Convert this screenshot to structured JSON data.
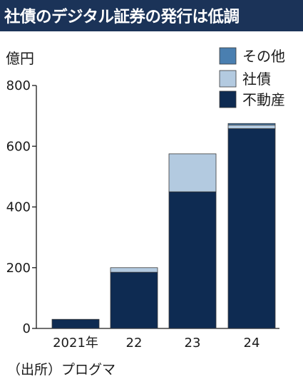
{
  "header": {
    "title": "社債のデジタル証券の発行は低調"
  },
  "unit": "億円",
  "source": "（出所）プログマ",
  "chart_data": {
    "type": "bar",
    "stacked": true,
    "categories": [
      "2021年",
      "22",
      "23",
      "24"
    ],
    "series": [
      {
        "name": "不動産",
        "color": "#0e2b52",
        "values": [
          30,
          185,
          450,
          658
        ]
      },
      {
        "name": "社債",
        "color": "#b3cae0",
        "values": [
          0,
          15,
          125,
          12
        ]
      },
      {
        "name": "その他",
        "color": "#4a7fb0",
        "values": [
          0,
          0,
          0,
          5
        ]
      }
    ],
    "yticks": [
      0,
      200,
      400,
      600,
      800
    ],
    "ylim": [
      0,
      800
    ],
    "legend_position": "top-right",
    "grid": false
  }
}
